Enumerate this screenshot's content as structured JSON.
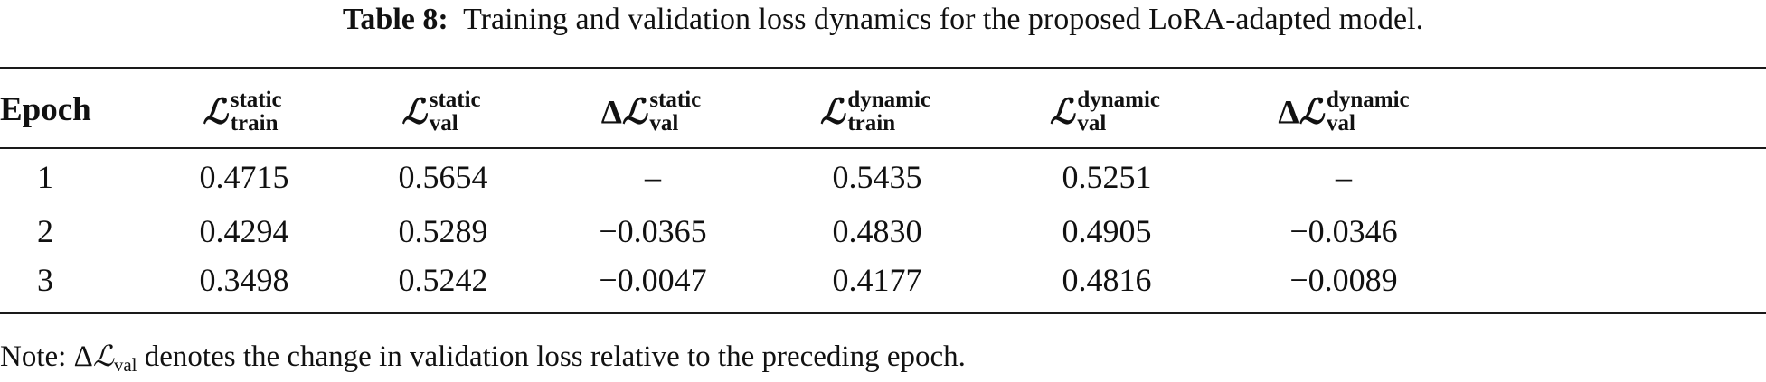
{
  "caption": {
    "label": "Table 8:",
    "text": "Training and validation loss dynamics for the proposed LoRA-adapted model."
  },
  "table": {
    "headers": [
      {
        "key": "epoch",
        "text": "Epoch"
      },
      {
        "key": "static_train",
        "delta": "",
        "symbol": "ℒ",
        "sup": "static",
        "sub": "train"
      },
      {
        "key": "static_val",
        "delta": "",
        "symbol": "ℒ",
        "sup": "static",
        "sub": "val"
      },
      {
        "key": "static_delta_val",
        "delta": "Δ",
        "symbol": "ℒ",
        "sup": "static",
        "sub": "val"
      },
      {
        "key": "dynamic_train",
        "delta": "",
        "symbol": "ℒ",
        "sup": "dynamic",
        "sub": "train"
      },
      {
        "key": "dynamic_val",
        "delta": "",
        "symbol": "ℒ",
        "sup": "dynamic",
        "sub": "val"
      },
      {
        "key": "dynamic_delta_val",
        "delta": "Δ",
        "symbol": "ℒ",
        "sup": "dynamic",
        "sub": "val"
      }
    ],
    "rows": [
      [
        "1",
        "0.4715",
        "0.5654",
        "–",
        "0.5435",
        "0.5251",
        "–"
      ],
      [
        "2",
        "0.4294",
        "0.5289",
        "−0.0365",
        "0.4830",
        "0.4905",
        "−0.0346"
      ],
      [
        "3",
        "0.3498",
        "0.5242",
        "−0.0047",
        "0.4177",
        "0.4816",
        "−0.0089"
      ]
    ]
  },
  "note": {
    "prefix": "Note: ",
    "delta": "Δ",
    "symbol": "ℒ",
    "sub": "val",
    "text": " denotes the change in validation loss relative to the preceding epoch."
  }
}
